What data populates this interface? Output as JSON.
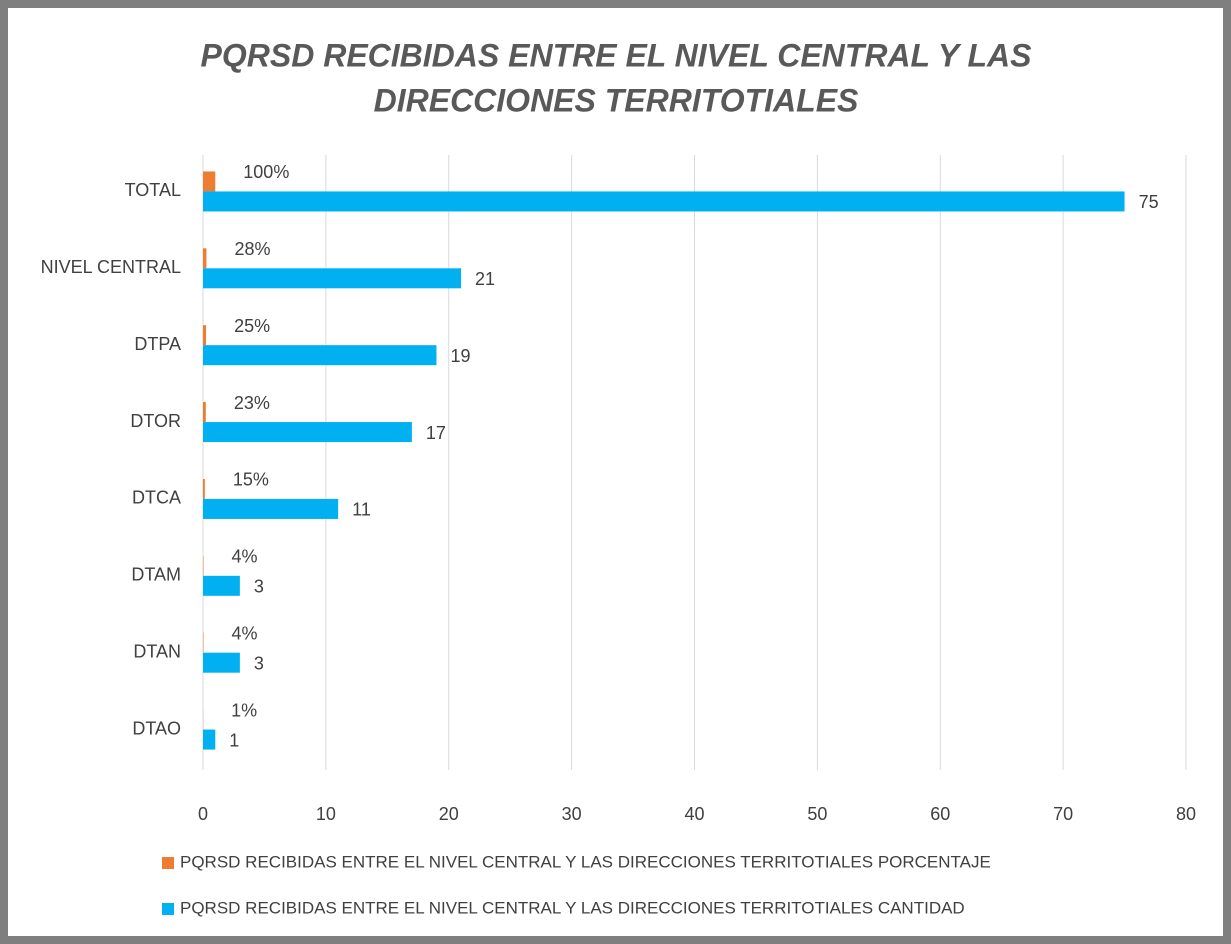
{
  "chart_data": {
    "type": "bar",
    "orientation": "horizontal",
    "title": [
      "PQRSD RECIBIDAS ENTRE EL NIVEL CENTRAL Y LAS",
      "DIRECCIONES TERRITOTIALES"
    ],
    "categories": [
      "TOTAL",
      "NIVEL CENTRAL",
      "DTPA",
      "DTOR",
      "DTCA",
      "DTAM",
      "DTAN",
      "DTAO"
    ],
    "series": [
      {
        "name": "PQRSD RECIBIDAS ENTRE EL NIVEL CENTRAL Y LAS DIRECCIONES TERRITOTIALES PORCENTAJE",
        "color": "#ed7d31",
        "values": [
          1,
          0.28,
          0.25,
          0.23,
          0.15,
          0.04,
          0.04,
          0.01
        ],
        "value_labels": [
          "100%",
          "28%",
          "25%",
          "23%",
          "15%",
          "4%",
          "4%",
          "1%"
        ]
      },
      {
        "name": "PQRSD RECIBIDAS ENTRE EL NIVEL CENTRAL Y LAS DIRECCIONES TERRITOTIALES CANTIDAD",
        "color": "#00b0f0",
        "values": [
          75,
          21,
          19,
          17,
          11,
          3,
          3,
          1
        ]
      }
    ],
    "xlim": [
      0,
      80
    ],
    "xticks": [
      0,
      10,
      20,
      30,
      40,
      50,
      60,
      70,
      80
    ],
    "grid": true,
    "legend": "bottom"
  }
}
